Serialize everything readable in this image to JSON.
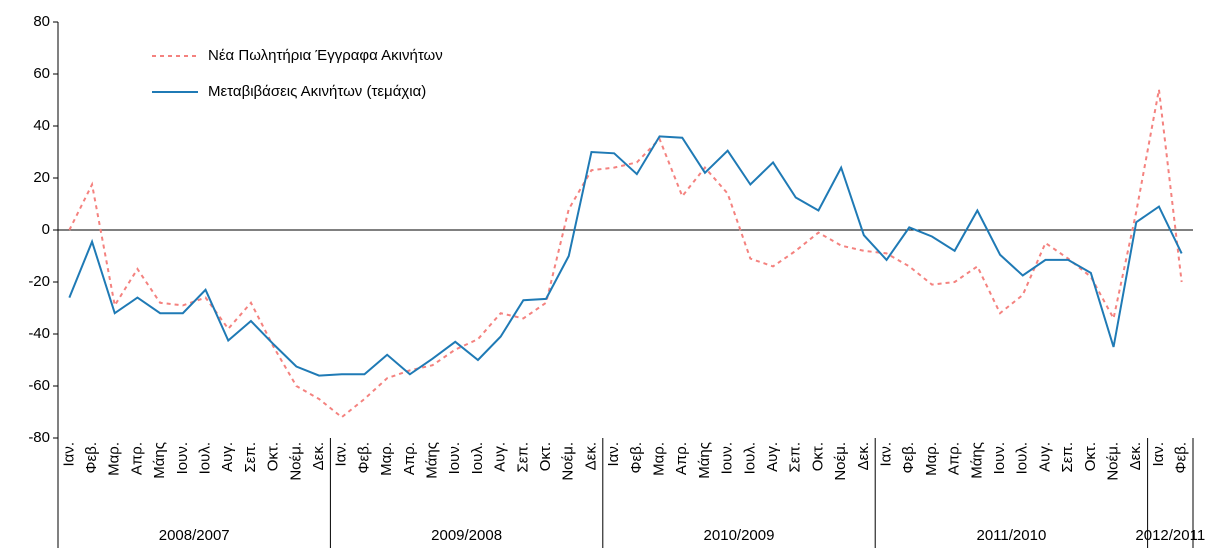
{
  "chart_data": {
    "type": "line",
    "groups": [
      {
        "label": "2008/2007",
        "categories": [
          "Ιαν.",
          "Φεβ.",
          "Μαρ.",
          "Απρ.",
          "Μάης",
          "Ιουν.",
          "Ιουλ.",
          "Αυγ.",
          "Σεπ.",
          "Οκτ.",
          "Νοέμ.",
          "Δεκ."
        ]
      },
      {
        "label": "2009/2008",
        "categories": [
          "Ιαν.",
          "Φεβ.",
          "Μαρ.",
          "Απρ.",
          "Μάης",
          "Ιουν.",
          "Ιουλ.",
          "Αυγ.",
          "Σεπ.",
          "Οκτ.",
          "Νοέμ.",
          "Δεκ."
        ]
      },
      {
        "label": "2010/2009",
        "categories": [
          "Ιαν.",
          "Φεβ.",
          "Μαρ.",
          "Απρ.",
          "Μάης",
          "Ιουν.",
          "Ιουλ.",
          "Αυγ.",
          "Σεπ.",
          "Οκτ.",
          "Νοέμ.",
          "Δεκ."
        ]
      },
      {
        "label": "2011/2010",
        "categories": [
          "Ιαν.",
          "Φεβ.",
          "Μαρ.",
          "Απρ.",
          "Μάης",
          "Ιουν.",
          "Ιουλ.",
          "Αυγ.",
          "Σεπ.",
          "Οκτ.",
          "Νοέμ.",
          "Δεκ."
        ]
      },
      {
        "label": "2012/2011",
        "categories": [
          "Ιαν.",
          "Φεβ."
        ]
      }
    ],
    "series": [
      {
        "name": "Νέα Πωλητήρια Έγγραφα Ακινήτων",
        "color": "#f4827f",
        "dashed": true,
        "values": [
          0,
          17.5,
          -29,
          -15,
          -28,
          -29,
          -26,
          -38,
          -28,
          -45,
          -60,
          -65,
          -72,
          -65,
          -57,
          -54,
          -52,
          -46,
          -42,
          -32,
          -34,
          -28,
          8,
          23,
          24,
          26,
          35,
          13,
          24,
          14,
          -11,
          -14,
          -8,
          -1,
          -6,
          -8,
          -9,
          -14,
          -21,
          -20,
          -14,
          -32,
          -25,
          -5,
          -11,
          -18,
          -34,
          7,
          54,
          -20
        ]
      },
      {
        "name": "Μεταβιβάσεις Ακινήτων (τεμάχια)",
        "color": "#1f7ab5",
        "dashed": false,
        "values": [
          -26,
          -4.5,
          -32,
          -26,
          -32,
          -32,
          -23,
          -42.5,
          -35,
          -44,
          -52.5,
          -56,
          -55.5,
          -55.5,
          -48,
          -55.5,
          -49.5,
          -43,
          -50,
          -41,
          -27,
          -26.5,
          -10,
          30,
          29.5,
          21.5,
          36,
          35.5,
          22,
          30.5,
          17.5,
          26,
          12.5,
          7.5,
          24,
          -2,
          -11.5,
          1,
          -2.5,
          -8,
          7.5,
          -9.5,
          -17.5,
          -11.5,
          -11.5,
          -16.5,
          -45,
          3,
          9,
          -9
        ]
      }
    ],
    "ylim": [
      -80,
      80
    ],
    "yticks": [
      -80,
      -60,
      -40,
      -20,
      0,
      20,
      40,
      60,
      80
    ],
    "legend": "upper left"
  }
}
